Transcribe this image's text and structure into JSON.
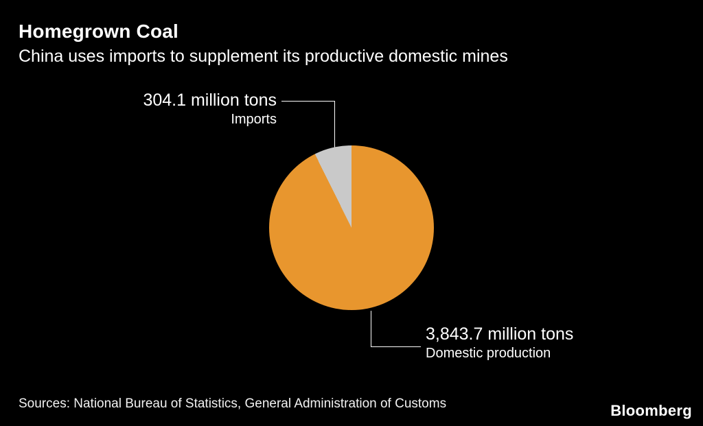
{
  "header": {
    "title": "Homegrown Coal",
    "subtitle": "China uses imports to supplement its productive domestic mines"
  },
  "chart_data": {
    "type": "pie",
    "title": "Homegrown Coal",
    "unit": "million tons",
    "slices": [
      {
        "label": "Domestic production",
        "value": 3843.7,
        "display": "3,843.7 million tons",
        "color": "#E8962E"
      },
      {
        "label": "Imports",
        "value": 304.1,
        "display": "304.1 million tons",
        "color": "#C9C9C9"
      }
    ],
    "layout": {
      "start_angle_deg": 0,
      "imports_slice_direction": "counterclockwise-from-top",
      "legend_position": "callouts",
      "grid": false
    }
  },
  "annotations": {
    "imports": {
      "value": "304.1 million tons",
      "label": "Imports"
    },
    "domestic": {
      "value": "3,843.7 million tons",
      "label": "Domestic production"
    }
  },
  "footer": {
    "sources": "Sources: National Bureau of Statistics, General Administration of Customs",
    "brand": "Bloomberg"
  },
  "colors": {
    "background": "#000000",
    "text": "#FFFFFF",
    "domestic": "#E8962E",
    "imports": "#C9C9C9",
    "callout_line": "#FFFFFF"
  }
}
